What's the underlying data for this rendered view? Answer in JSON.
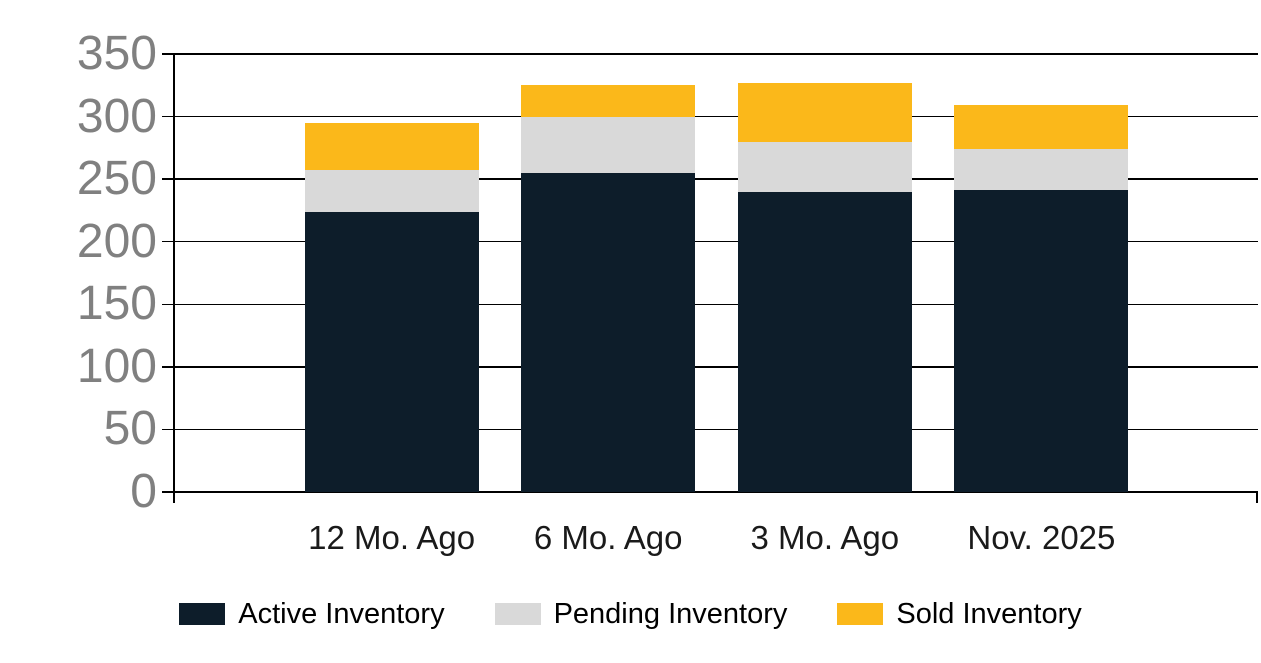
{
  "page": {
    "background_color": "#ffffff"
  },
  "chart_data": {
    "type": "bar",
    "stacked": true,
    "title": "",
    "categories": [
      "12 Mo. Ago",
      "6 Mo. Ago",
      "3 Mo. Ago",
      "Nov. 2025"
    ],
    "series": [
      {
        "name": "Active Inventory",
        "color": "#0D1D2A",
        "values": [
          224,
          255,
          240,
          241
        ]
      },
      {
        "name": "Pending Inventory",
        "color": "#D9D9D9",
        "values": [
          33,
          45,
          40,
          33
        ]
      },
      {
        "name": "Sold Inventory",
        "color": "#FBB81A",
        "values": [
          38,
          25,
          47,
          35
        ]
      }
    ],
    "xlabel": "",
    "ylabel": "",
    "ylim": [
      0,
      350
    ],
    "yticks": [
      0,
      50,
      100,
      150,
      200,
      250,
      300,
      350
    ],
    "grid": true,
    "gridline_color": "#000000",
    "axis_tick_label_color": "#808080",
    "category_label_color": "#1a1a1a",
    "legend_position": "bottom",
    "legend_text_color": "#000000"
  }
}
